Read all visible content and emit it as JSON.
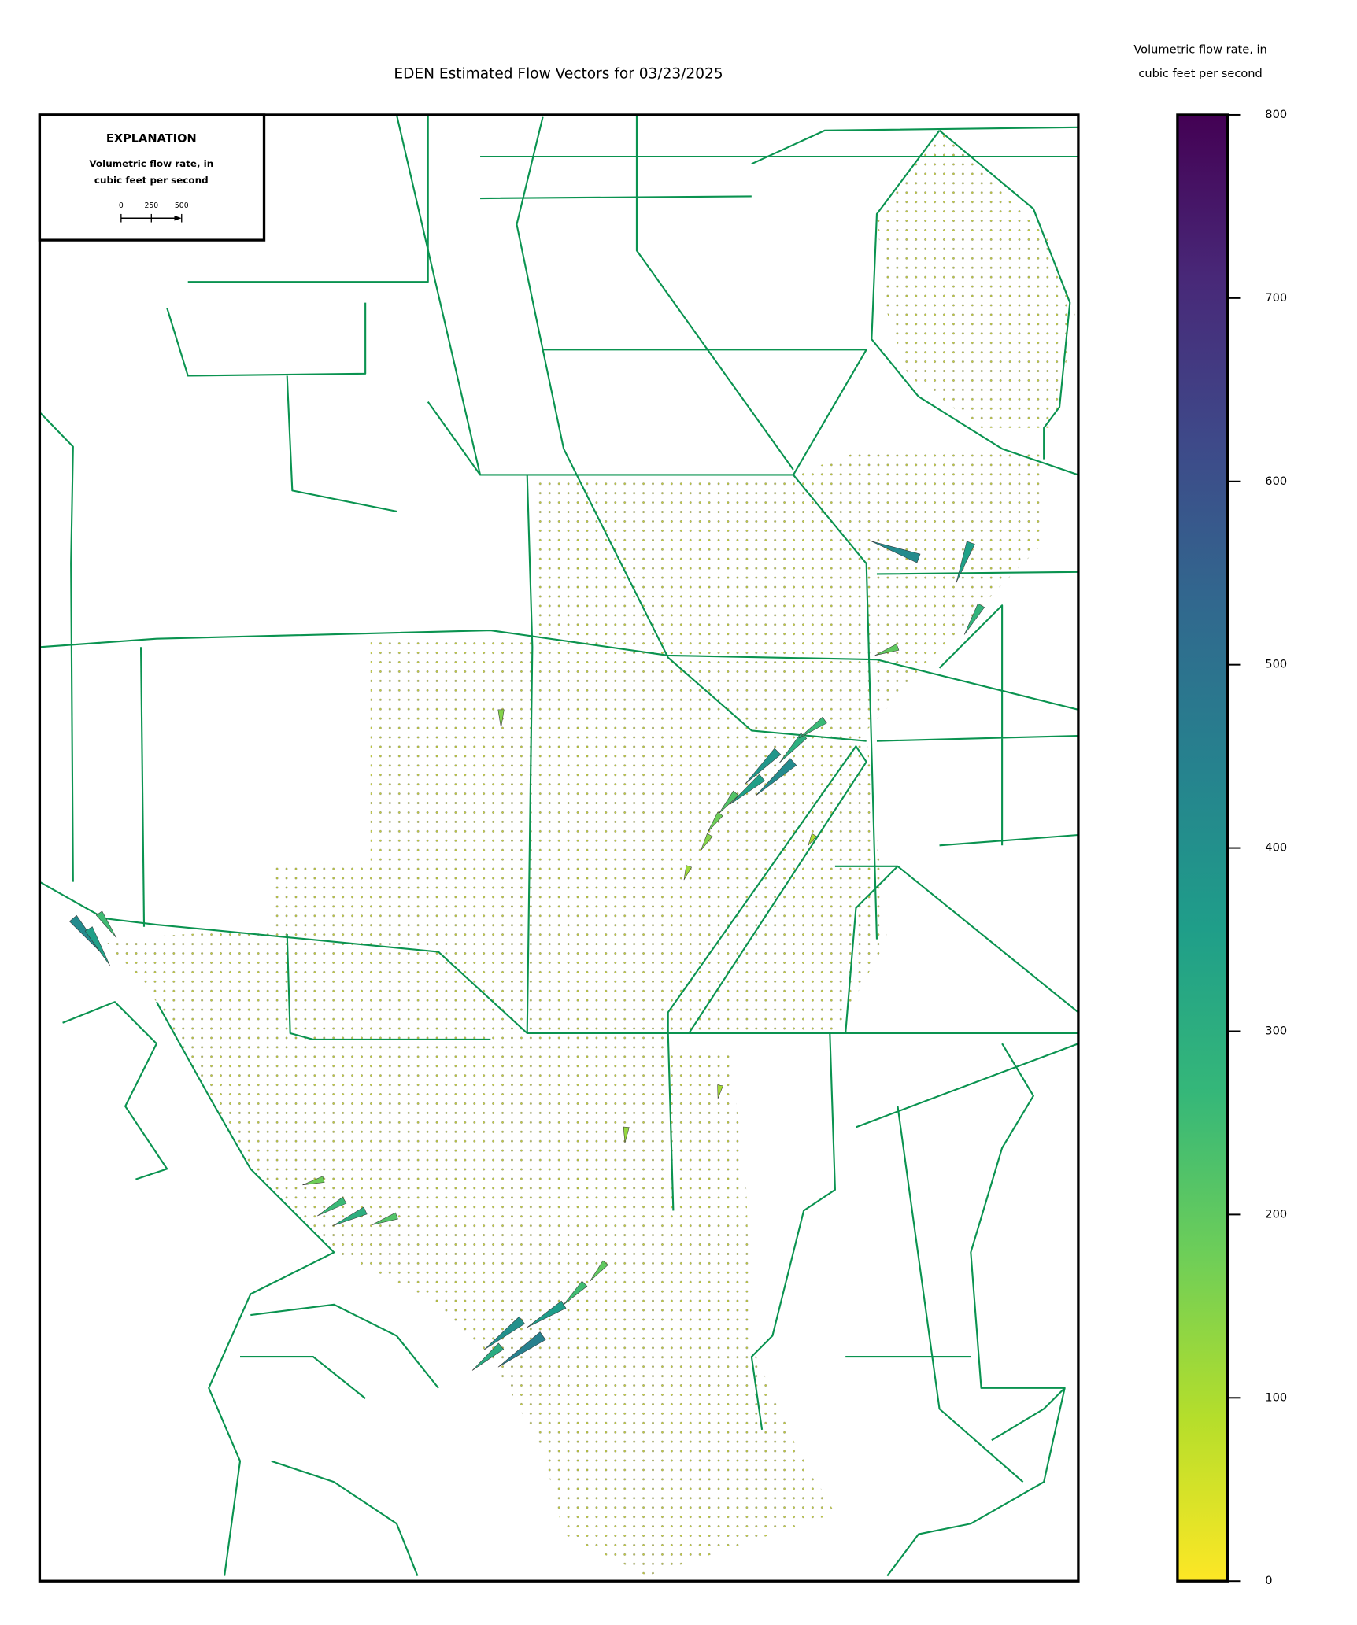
{
  "chart_data": {
    "type": "vector-map",
    "title": "EDEN Estimated Flow Vectors for 03/23/2025",
    "colorbar_label": [
      "Volumetric flow rate, in",
      "cubic feet per second"
    ],
    "clim": [
      0,
      800
    ],
    "cticks": [
      0,
      100,
      200,
      300,
      400,
      500,
      600,
      700,
      800
    ],
    "colors": [
      "#fde725",
      "#b5de2b",
      "#6ece58",
      "#35b779",
      "#1f9e89",
      "#26828e",
      "#31688e",
      "#3e4989",
      "#482878",
      "#440154"
    ],
    "legend": {
      "title": "EXPLANATION",
      "label": [
        "Volumetric flow rate, in",
        "cubic feet per second"
      ],
      "scale_ticks": [
        0,
        250,
        500
      ]
    },
    "vectors": [
      {
        "magnitude": 420,
        "direction": 222
      },
      {
        "magnitude": 380,
        "direction": 225
      },
      {
        "magnitude": 350,
        "direction": 220
      },
      {
        "magnitude": 300,
        "direction": 228
      },
      {
        "magnitude": 260,
        "direction": 215
      },
      {
        "magnitude": 220,
        "direction": 230
      },
      {
        "magnitude": 180,
        "direction": 235
      },
      {
        "magnitude": 150,
        "direction": 240
      },
      {
        "magnitude": 120,
        "direction": 250
      },
      {
        "magnitude": 450,
        "direction": 215
      },
      {
        "magnitude": 400,
        "direction": 218
      },
      {
        "magnitude": 360,
        "direction": 212
      },
      {
        "magnitude": 310,
        "direction": 220
      },
      {
        "magnitude": 250,
        "direction": 225
      },
      {
        "magnitude": 200,
        "direction": 230
      },
      {
        "magnitude": 300,
        "direction": 205
      },
      {
        "magnitude": 260,
        "direction": 210
      },
      {
        "magnitude": 220,
        "direction": 200
      },
      {
        "magnitude": 180,
        "direction": 195
      },
      {
        "magnitude": 420,
        "direction": 160
      },
      {
        "magnitude": 350,
        "direction": 250
      },
      {
        "magnitude": 280,
        "direction": 240
      },
      {
        "magnitude": 200,
        "direction": 200
      },
      {
        "magnitude": 420,
        "direction": 310
      },
      {
        "magnitude": 350,
        "direction": 300
      },
      {
        "magnitude": 250,
        "direction": 305
      },
      {
        "magnitude": 150,
        "direction": 270
      },
      {
        "magnitude": 130,
        "direction": 265
      },
      {
        "magnitude": 110,
        "direction": 260
      },
      {
        "magnitude": 100,
        "direction": 240
      }
    ]
  }
}
